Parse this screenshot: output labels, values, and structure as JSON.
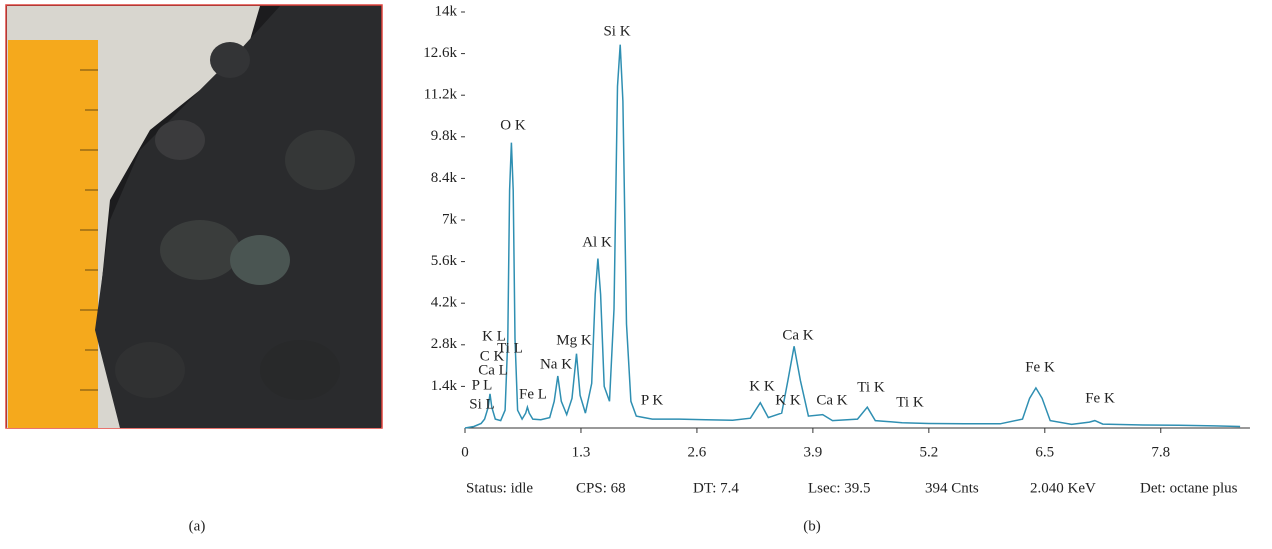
{
  "chart_data": {
    "type": "line",
    "x": [
      0,
      0.1,
      0.18,
      0.22,
      0.26,
      0.28,
      0.3,
      0.34,
      0.4,
      0.45,
      0.48,
      0.5,
      0.52,
      0.54,
      0.56,
      0.59,
      0.64,
      0.68,
      0.7,
      0.72,
      0.76,
      0.85,
      0.95,
      1.0,
      1.04,
      1.08,
      1.14,
      1.2,
      1.25,
      1.29,
      1.35,
      1.42,
      1.46,
      1.49,
      1.52,
      1.56,
      1.62,
      1.67,
      1.71,
      1.74,
      1.77,
      1.81,
      1.86,
      1.92,
      2.01,
      2.1,
      2.4,
      2.7,
      3.0,
      3.2,
      3.31,
      3.4,
      3.55,
      3.62,
      3.69,
      3.76,
      3.85,
      4.01,
      4.12,
      4.4,
      4.51,
      4.6,
      4.9,
      5.2,
      5.6,
      6.0,
      6.25,
      6.33,
      6.4,
      6.47,
      6.56,
      6.8,
      7.0,
      7.06,
      7.15,
      7.6,
      8.0,
      8.4,
      8.69
    ],
    "values": [
      0,
      50,
      150,
      300,
      700,
      1150,
      700,
      300,
      250,
      600,
      3000,
      8000,
      9600,
      8000,
      3000,
      600,
      300,
      500,
      700,
      500,
      300,
      280,
      350,
      900,
      1750,
      900,
      450,
      1000,
      2500,
      1100,
      500,
      1500,
      4500,
      5700,
      4500,
      1400,
      900,
      4000,
      11500,
      12900,
      11000,
      3500,
      900,
      400,
      350,
      300,
      300,
      280,
      260,
      330,
      850,
      350,
      500,
      1600,
      2750,
      1600,
      400,
      450,
      250,
      300,
      700,
      250,
      180,
      150,
      140,
      140,
      300,
      1000,
      1350,
      1000,
      250,
      120,
      200,
      250,
      130,
      100,
      90,
      70,
      50
    ],
    "color": "#2f8fb2",
    "xlim": [
      0,
      8.8
    ],
    "ylim": [
      0,
      14000
    ],
    "xticks": [
      0,
      1.3,
      2.6,
      3.9,
      5.2,
      6.5,
      7.8
    ],
    "yticks": [
      {
        "value": 1400,
        "label": "1.4k"
      },
      {
        "value": 2800,
        "label": "2.8k"
      },
      {
        "value": 4200,
        "label": "4.2k"
      },
      {
        "value": 5600,
        "label": "5.6k"
      },
      {
        "value": 7000,
        "label": "7k"
      },
      {
        "value": 8400,
        "label": "8.4k"
      },
      {
        "value": 9800,
        "label": "9.8k"
      },
      {
        "value": 11200,
        "label": "11.2k"
      },
      {
        "value": 12600,
        "label": "12.6k"
      },
      {
        "value": 14000,
        "label": "14k"
      }
    ],
    "annotations": [
      "P L",
      "Si L",
      "Ca L",
      "K L",
      "C K",
      "Ti L",
      "O K",
      "Fe L",
      "Na K",
      "Mg K",
      "Al K",
      "Si K",
      "P K",
      "K K",
      "K K",
      "Ca K",
      "Ca K",
      "Ti K",
      "Ti K",
      "Fe K",
      "Fe K"
    ],
    "status": [
      "Status: idle",
      "CPS: 68",
      "DT: 7.4",
      "Lsec: 39.5",
      "394 Cnts",
      "2.040 KeV",
      "Det: octane plus"
    ]
  },
  "captions": [
    "(a)",
    "(b)"
  ]
}
